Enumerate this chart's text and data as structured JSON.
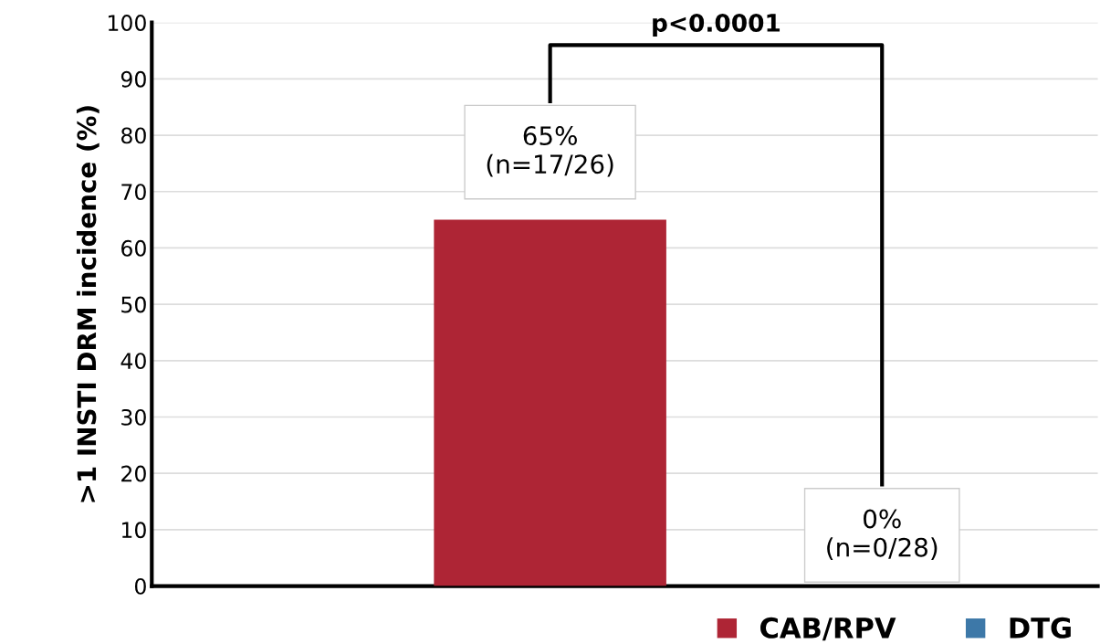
{
  "chart_data": {
    "type": "bar",
    "ylabel": ">1 INSTI DRM incidence (%)",
    "categories": [
      null,
      null
    ],
    "series": [
      {
        "name": "CAB/RPV",
        "color": "#ae2535",
        "values": [
          65,
          null
        ],
        "value_labels": [
          "65%\n(n=17/26)",
          null
        ]
      },
      {
        "name": "DTG",
        "color": "#3d78a8",
        "values": [
          null,
          0
        ],
        "value_labels": [
          null,
          "0%\n(n=0/28)"
        ]
      }
    ],
    "ylim": [
      0,
      100
    ],
    "yticks": [
      0,
      10,
      20,
      30,
      40,
      50,
      60,
      70,
      80,
      90,
      100
    ],
    "grid": "y",
    "legend": "bottom right",
    "annotations": [
      "p<0.0001"
    ]
  }
}
